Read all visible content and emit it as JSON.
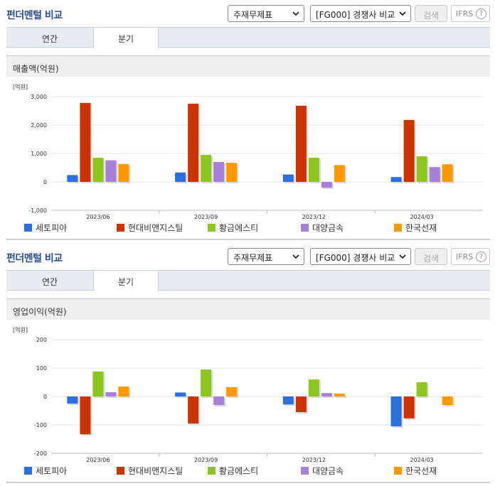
{
  "panels": [
    {
      "title": "펀더멘털 비교",
      "select_statement": "주재무제표",
      "select_group": "[FG000] 경쟁사 비교",
      "search_label": "검색",
      "ifrs_label": "IFRS",
      "help_label": "?",
      "tabs": [
        "연간",
        "분기"
      ],
      "metric_title": "매출액(억원)",
      "unit_label": "[억원]"
    },
    {
      "title": "펀더멘털 비교",
      "select_statement": "주재무제표",
      "select_group": "[FG000] 경쟁사 비교",
      "search_label": "검색",
      "ifrs_label": "IFRS",
      "help_label": "?",
      "tabs": [
        "연간",
        "분기"
      ],
      "metric_title": "영업이익(억원)",
      "unit_label": "[억원]"
    }
  ],
  "chart_data": [
    {
      "type": "bar",
      "title": "매출액(억원)",
      "ylabel": "[억원]",
      "categories": [
        "2023/06",
        "2023/09",
        "2023/12",
        "2024/03"
      ],
      "ylim": [
        -1000,
        3000
      ],
      "yticks": [
        -1000,
        0,
        1000,
        2000,
        3000
      ],
      "ytick_labels": [
        "-1,000",
        "0",
        "1,000",
        "2,000",
        "3,000"
      ],
      "grid": true,
      "legend": "bottom",
      "series": [
        {
          "name": "세토피아",
          "color": "#2a6fdc",
          "values": [
            240,
            330,
            260,
            170
          ]
        },
        {
          "name": "현대비앤지스틸",
          "color": "#cc3300",
          "values": [
            2780,
            2750,
            2680,
            2180
          ]
        },
        {
          "name": "황금에스티",
          "color": "#8cc61e",
          "values": [
            850,
            950,
            850,
            900
          ]
        },
        {
          "name": "대양금속",
          "color": "#a77fd8",
          "values": [
            760,
            700,
            -200,
            520
          ]
        },
        {
          "name": "한국선재",
          "color": "#ff9900",
          "values": [
            630,
            670,
            590,
            620
          ]
        }
      ]
    },
    {
      "type": "bar",
      "title": "영업이익(억원)",
      "ylabel": "[억원]",
      "categories": [
        "2023/06",
        "2023/09",
        "2023/12",
        "2024/03"
      ],
      "ylim": [
        -200,
        200
      ],
      "yticks": [
        -200,
        -100,
        0,
        100,
        200
      ],
      "ytick_labels": [
        "-200",
        "-100",
        "0",
        "100",
        "200"
      ],
      "grid": true,
      "legend": "bottom",
      "series": [
        {
          "name": "세토피아",
          "color": "#2a6fdc",
          "values": [
            -25,
            14,
            -28,
            -105
          ]
        },
        {
          "name": "현대비앤지스틸",
          "color": "#cc3300",
          "values": [
            -133,
            -95,
            -55,
            -77
          ]
        },
        {
          "name": "황금에스티",
          "color": "#8cc61e",
          "values": [
            88,
            95,
            60,
            50
          ]
        },
        {
          "name": "대양금속",
          "color": "#a77fd8",
          "values": [
            15,
            -30,
            12,
            0
          ]
        },
        {
          "name": "한국선재",
          "color": "#ff9900",
          "values": [
            35,
            33,
            10,
            -30
          ]
        }
      ]
    }
  ]
}
